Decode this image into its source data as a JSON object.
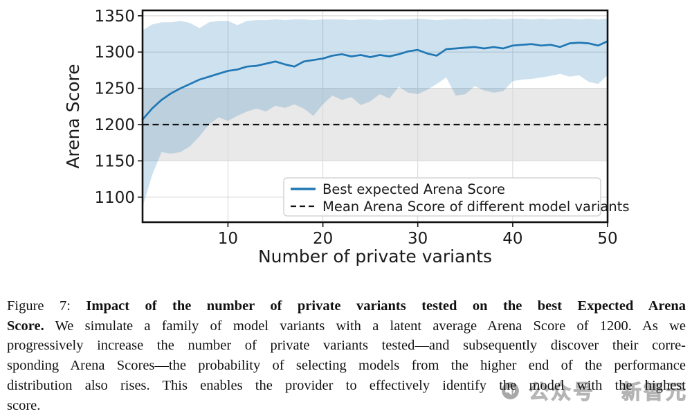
{
  "figure": {
    "watermark": {
      "icon": "megaphone-icon",
      "label_1": "公众号",
      "label_2": "新智元"
    }
  },
  "caption": {
    "lines": [
      [
        {
          "b": 0,
          "t": "Figure 7: "
        },
        {
          "b": 1,
          "t": "Impact of the number of private variants tested on the best Expected Arena"
        }
      ],
      [
        {
          "b": 1,
          "t": "Score."
        },
        {
          "b": 0,
          "t": " We simulate a family of model variants with a latent average Arena Score of 1200. As we"
        }
      ],
      [
        {
          "b": 0,
          "t": "progressively increase the number of private variants tested—and subsequently discover their corre-"
        }
      ],
      [
        {
          "b": 0,
          "t": "sponding Arena Scores—the probability of selecting models from the higher end of the performance"
        }
      ],
      [
        {
          "b": 0,
          "t": "distribution also rises. This enables the provider to effectively identify the model with the highest"
        }
      ],
      [
        {
          "b": 0,
          "t": "score."
        }
      ]
    ]
  },
  "chart_data": {
    "type": "line",
    "title": "",
    "xlabel": "Number of private variants",
    "ylabel": "Arena Score",
    "xlim": [
      1,
      50
    ],
    "ylim": [
      1065,
      1358
    ],
    "xticks": [
      10,
      20,
      30,
      40,
      50
    ],
    "yticks": [
      1100,
      1150,
      1200,
      1250,
      1300,
      1350
    ],
    "grid": true,
    "legend_position": "lower right",
    "legend": [
      "Best expected Arena Score",
      "Mean Arena Score of different model variants"
    ],
    "mean_score": 1200,
    "gray_band_range": [
      1150,
      1250
    ],
    "x": [
      1,
      2,
      3,
      4,
      5,
      6,
      7,
      8,
      9,
      10,
      11,
      12,
      13,
      14,
      15,
      16,
      17,
      18,
      19,
      20,
      21,
      22,
      23,
      24,
      25,
      26,
      27,
      28,
      29,
      30,
      31,
      32,
      33,
      34,
      35,
      36,
      37,
      38,
      39,
      40,
      41,
      42,
      43,
      44,
      45,
      46,
      47,
      48,
      49,
      50
    ],
    "series": [
      {
        "name": "Best expected Arena Score",
        "values": [
          1207,
          1222,
          1234,
          1243,
          1250,
          1256,
          1262,
          1266,
          1270,
          1274,
          1276,
          1280,
          1281,
          1284,
          1287,
          1283,
          1280,
          1287,
          1289,
          1291,
          1295,
          1297,
          1294,
          1296,
          1293,
          1296,
          1294,
          1297,
          1301,
          1303,
          1298,
          1295,
          1304,
          1305,
          1306,
          1307,
          1305,
          1307,
          1305,
          1309,
          1310,
          1311,
          1309,
          1310,
          1307,
          1312,
          1313,
          1312,
          1309,
          1315
        ]
      }
    ],
    "band_upper": [
      1330,
      1338,
      1341,
      1341,
      1343,
      1340,
      1333,
      1341,
      1343,
      1343,
      1337,
      1343,
      1344,
      1344,
      1345,
      1344,
      1345,
      1345,
      1344,
      1345,
      1345,
      1345,
      1344,
      1345,
      1345,
      1344,
      1345,
      1345,
      1345,
      1346,
      1345,
      1344,
      1345,
      1345,
      1346,
      1345,
      1345,
      1346,
      1345,
      1346,
      1346,
      1345,
      1346,
      1345,
      1346,
      1346,
      1345,
      1346,
      1345,
      1346
    ],
    "band_lower": [
      1086,
      1130,
      1162,
      1160,
      1162,
      1170,
      1184,
      1200,
      1210,
      1205,
      1212,
      1218,
      1222,
      1218,
      1226,
      1223,
      1228,
      1222,
      1212,
      1228,
      1240,
      1234,
      1238,
      1227,
      1232,
      1242,
      1236,
      1252,
      1244,
      1242,
      1248,
      1256,
      1265,
      1240,
      1242,
      1253,
      1247,
      1244,
      1246,
      1260,
      1262,
      1263,
      1265,
      1267,
      1270,
      1266,
      1268,
      1259,
      1256,
      1268
    ],
    "colors": {
      "line": "#1f77b4",
      "band": "rgba(31,119,180,0.22)",
      "gray_band": "#e9e9e9",
      "grid": "#d9d9d9",
      "axis": "#111111"
    }
  }
}
